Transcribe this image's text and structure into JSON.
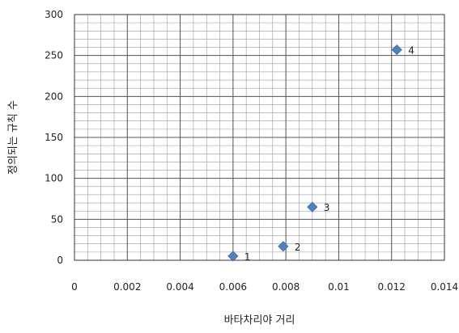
{
  "chart_data": {
    "type": "scatter",
    "xlabel": "바타차리야 거리",
    "ylabel": "정의되는 규칙 수",
    "xlim": [
      0,
      0.014
    ],
    "ylim": [
      0,
      300
    ],
    "x_ticks": [
      "0",
      "0.002",
      "0.004",
      "0.006",
      "0.008",
      "0.01",
      "0.012",
      "0.014"
    ],
    "y_ticks": [
      "0",
      "50",
      "100",
      "150",
      "200",
      "250",
      "300"
    ],
    "grid": "major and minor",
    "marker": "diamond",
    "marker_color": "#4f81bd",
    "points": [
      {
        "x": 0.006,
        "y": 5,
        "label": "1"
      },
      {
        "x": 0.0079,
        "y": 17,
        "label": "2"
      },
      {
        "x": 0.009,
        "y": 65,
        "label": "3"
      },
      {
        "x": 0.0122,
        "y": 257,
        "label": "4"
      }
    ]
  }
}
